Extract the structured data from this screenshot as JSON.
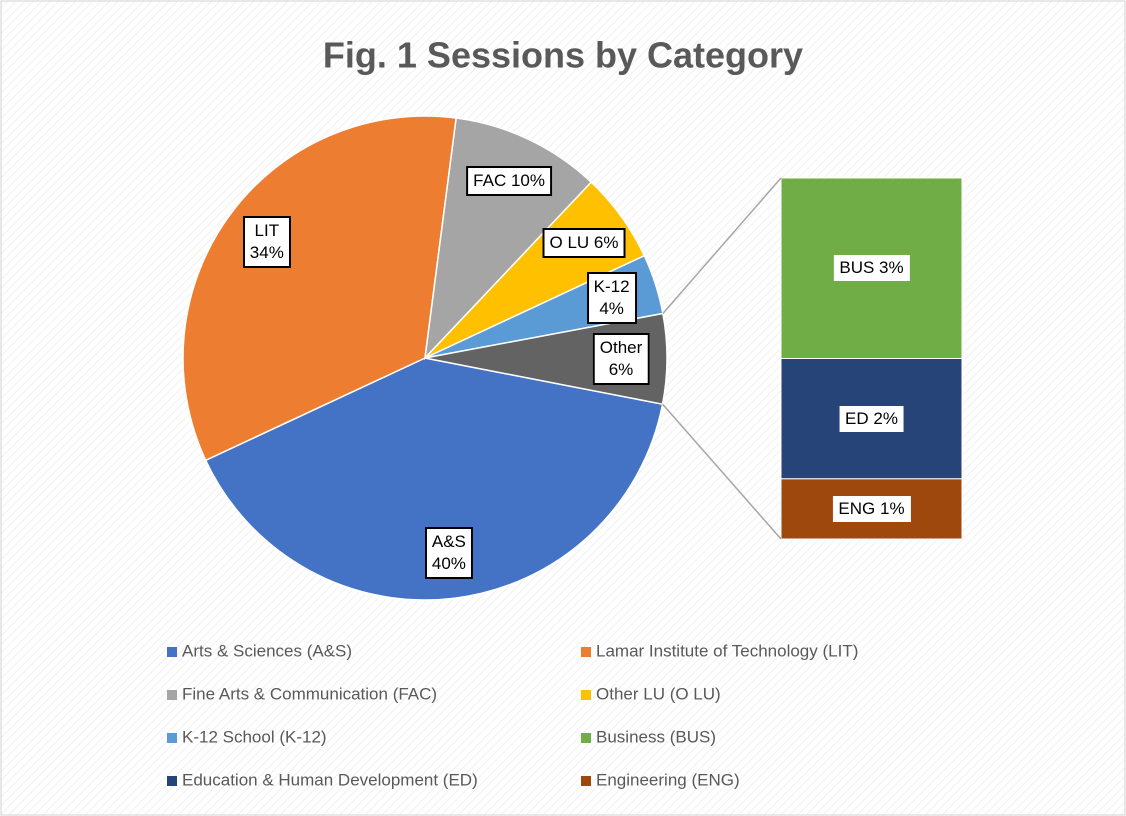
{
  "chart_data": {
    "type": "pie",
    "title": "Fig. 1 Sessions by Category",
    "pie": {
      "values": [
        40,
        34,
        10,
        6,
        4,
        6
      ],
      "value_labels": [
        "A&S\n40%",
        "LIT\n34%",
        "FAC 10%",
        "O LU 6%",
        "K-12\n4%",
        "Other\n6%"
      ],
      "colors": [
        "#4472c4",
        "#ed7d31",
        "#a5a5a5",
        "#ffc000",
        "#5b9bd5",
        "#636363"
      ]
    },
    "bar": {
      "values": [
        3,
        2,
        1
      ],
      "value_labels": [
        "BUS 3%",
        "ED 2%",
        "ENG 1%"
      ],
      "colors": [
        "#70ad47",
        "#264478",
        "#9e480e"
      ]
    },
    "legend": [
      "Arts & Sciences (A&S)",
      "Lamar Institute of Technology (LIT)",
      "Fine Arts & Communication (FAC)",
      "Other LU (O LU)",
      "K-12 School (K-12)",
      "Business (BUS)",
      "Education & Human Development (ED)",
      "Engineering (ENG)"
    ]
  }
}
